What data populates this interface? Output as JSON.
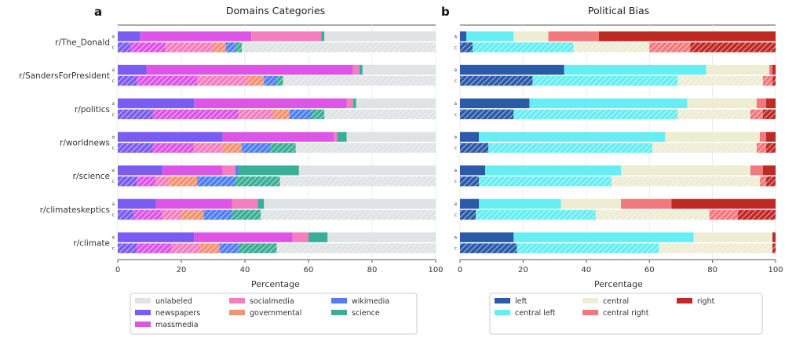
{
  "chart_data": [
    {
      "panel": "a",
      "type": "bar",
      "orientation": "horizontal",
      "stacked": true,
      "title": "Domains Categories",
      "xlabel": "Percentage",
      "xlim": [
        0,
        100
      ],
      "xticks": [
        0,
        20,
        40,
        60,
        80,
        100
      ],
      "row_labels": [
        "a",
        "c"
      ],
      "categories": [
        "r/The_Donald",
        "r/SandersForPresident",
        "r/politics",
        "r/worldnews",
        "r/science",
        "r/climateskeptics",
        "r/climate"
      ],
      "legend_order": [
        "unlabeled",
        "newspapers",
        "massmedia",
        "socialmedia",
        "governmental",
        "wikimedia",
        "science"
      ],
      "series": [
        {
          "name": "newspapers",
          "color": "#7b5cf0",
          "a": [
            7,
            9,
            24,
            33,
            14,
            12,
            24
          ],
          "c": [
            4,
            6,
            11,
            11,
            6,
            5,
            6
          ]
        },
        {
          "name": "massmedia",
          "color": "#dd55e6",
          "a": [
            35,
            65,
            48,
            35,
            19,
            24,
            31
          ],
          "c": [
            11,
            19,
            27,
            13,
            6,
            9,
            11
          ]
        },
        {
          "name": "socialmedia",
          "color": "#f47fc0",
          "a": [
            22,
            2,
            2,
            1,
            4,
            8,
            5
          ],
          "c": [
            15,
            16,
            11,
            9,
            4,
            6,
            9
          ]
        },
        {
          "name": "governmental",
          "color": "#f39374",
          "a": [
            0,
            0,
            0,
            0,
            0,
            0,
            0
          ],
          "c": [
            4,
            5,
            5,
            6,
            9,
            7,
            6
          ]
        },
        {
          "name": "wikimedia",
          "color": "#4f7ff2",
          "a": [
            0,
            0,
            0,
            0,
            1,
            0,
            0
          ],
          "c": [
            3,
            4,
            7,
            9,
            12,
            9,
            6
          ]
        },
        {
          "name": "science",
          "color": "#3aae96",
          "a": [
            1,
            1,
            1,
            3,
            19,
            2,
            6
          ],
          "c": [
            2,
            2,
            4,
            8,
            14,
            9,
            12
          ]
        },
        {
          "name": "unlabeled",
          "color": "#dfe3e3",
          "a": [
            35,
            23,
            25,
            28,
            43,
            54,
            34
          ],
          "c": [
            61,
            48,
            35,
            44,
            49,
            55,
            50
          ]
        }
      ]
    },
    {
      "panel": "b",
      "type": "bar",
      "orientation": "horizontal",
      "stacked": true,
      "title": "Political Bias",
      "xlabel": "Percentage",
      "xlim": [
        0,
        100
      ],
      "xticks": [
        0,
        20,
        40,
        60,
        80,
        100
      ],
      "row_labels": [
        "a",
        "c"
      ],
      "categories": [
        "r/The_Donald",
        "r/SandersForPresident",
        "r/politics",
        "r/worldnews",
        "r/science",
        "r/climateskeptics",
        "r/climate"
      ],
      "legend_order": [
        "left",
        "central left",
        "central",
        "central right",
        "right"
      ],
      "series": [
        {
          "name": "left",
          "color": "#2a5aa8",
          "a": [
            2,
            33,
            22,
            6,
            8,
            6,
            17
          ],
          "c": [
            4,
            23,
            17,
            9,
            6,
            5,
            18
          ]
        },
        {
          "name": "central left",
          "color": "#66eef2",
          "a": [
            15,
            45,
            50,
            59,
            43,
            26,
            57
          ],
          "c": [
            32,
            46,
            52,
            52,
            42,
            38,
            45
          ]
        },
        {
          "name": "central",
          "color": "#efecd4",
          "a": [
            11,
            20,
            22,
            30,
            41,
            19,
            25
          ],
          "c": [
            24,
            27,
            23,
            33,
            47,
            36,
            36
          ]
        },
        {
          "name": "central right",
          "color": "#f2797b",
          "a": [
            16,
            1,
            3,
            2,
            4,
            16,
            0
          ],
          "c": [
            13,
            3,
            4,
            3,
            2,
            9,
            0
          ]
        },
        {
          "name": "right",
          "color": "#c02a25",
          "a": [
            56,
            1,
            3,
            3,
            4,
            33,
            1
          ],
          "c": [
            27,
            1,
            4,
            3,
            3,
            12,
            1
          ]
        }
      ]
    }
  ],
  "labels": {
    "panel_a": "a",
    "panel_b": "b",
    "title_a": "Domains Categories",
    "title_b": "Political Bias",
    "xlabel_a": "Percentage",
    "xlabel_b": "Percentage"
  }
}
